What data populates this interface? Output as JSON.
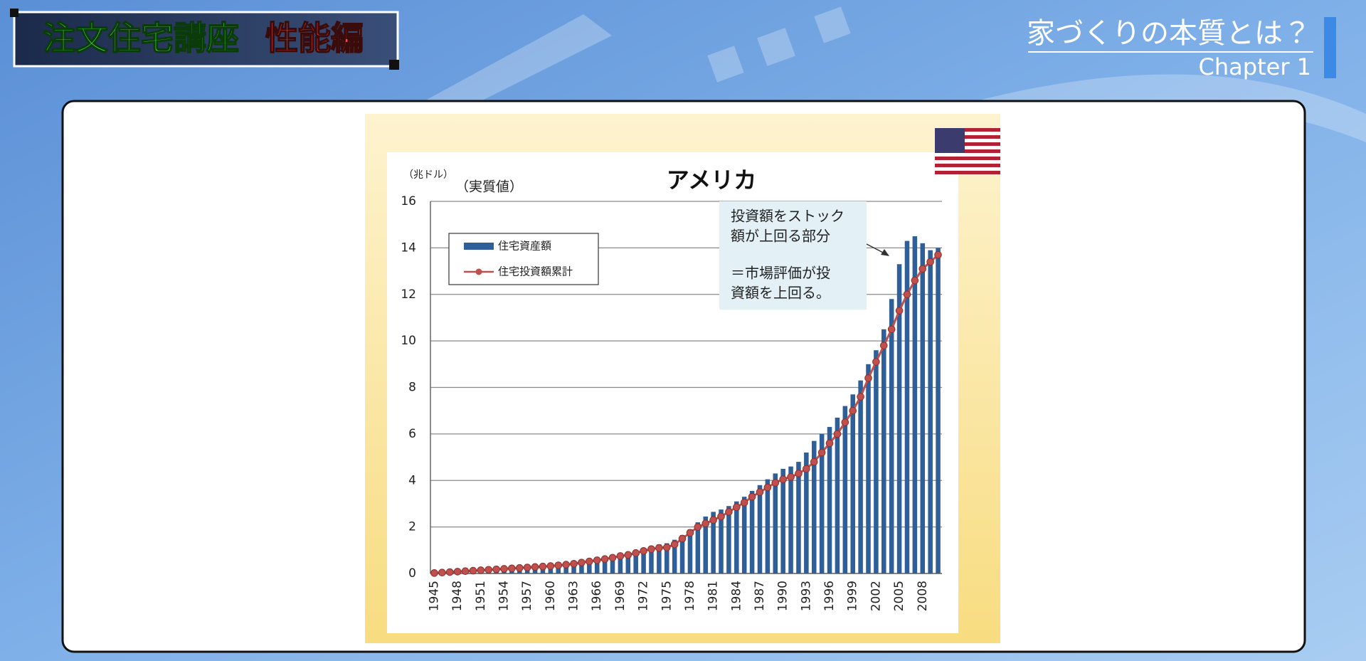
{
  "header": {
    "course": "注文住宅講座",
    "edition": "性能編"
  },
  "chapter": {
    "title": "家づくりの本質とは？",
    "label": "Chapter 1"
  },
  "chart_data": {
    "type": "bar-line",
    "title": "アメリカ",
    "subtitle": "（実質値）",
    "y_label": "（兆ドル）",
    "annotation": [
      "投資額をストック",
      "額が上回る部分",
      "＝市場評価が投",
      "資額を上回る。"
    ],
    "categories": [
      "1945",
      null,
      null,
      "1948",
      null,
      null,
      "1951",
      null,
      null,
      "1954",
      null,
      null,
      "1957",
      null,
      null,
      "1960",
      null,
      null,
      "1963",
      null,
      null,
      "1966",
      null,
      null,
      "1969",
      null,
      null,
      "1972",
      null,
      null,
      "1975",
      null,
      null,
      "1978",
      null,
      null,
      "1981",
      null,
      null,
      "1984",
      null,
      null,
      "1987",
      null,
      null,
      "1990",
      null,
      null,
      "1993",
      null,
      null,
      "1996",
      null,
      null,
      "1999",
      null,
      null,
      "2002",
      null,
      null,
      "2005",
      null,
      null,
      "2008",
      null,
      null
    ],
    "series": [
      {
        "name": "住宅資産額",
        "color": "#2f5f98",
        "kind": "bar",
        "values": [
          0.05,
          0.07,
          0.09,
          0.11,
          0.13,
          0.15,
          0.17,
          0.19,
          0.21,
          0.23,
          0.25,
          0.27,
          0.29,
          0.31,
          0.33,
          0.35,
          0.38,
          0.41,
          0.45,
          0.5,
          0.55,
          0.6,
          0.65,
          0.72,
          0.8,
          0.86,
          0.95,
          1.05,
          1.15,
          1.25,
          1.3,
          1.45,
          1.65,
          1.9,
          2.2,
          2.45,
          2.65,
          2.75,
          2.9,
          3.1,
          3.3,
          3.55,
          3.8,
          4.05,
          4.3,
          4.5,
          4.6,
          4.8,
          5.2,
          5.7,
          6.0,
          6.3,
          6.7,
          7.2,
          7.7,
          8.3,
          9.0,
          9.6,
          10.5,
          11.8,
          13.3,
          14.3,
          14.5,
          14.2,
          13.9,
          14.0
        ]
      },
      {
        "name": "住宅投資額累計",
        "color": "#c0504d",
        "kind": "line",
        "values": [
          0.02,
          0.04,
          0.06,
          0.08,
          0.1,
          0.12,
          0.14,
          0.16,
          0.18,
          0.2,
          0.22,
          0.24,
          0.26,
          0.28,
          0.3,
          0.32,
          0.35,
          0.38,
          0.42,
          0.47,
          0.52,
          0.57,
          0.62,
          0.68,
          0.75,
          0.8,
          0.88,
          0.97,
          1.05,
          1.1,
          1.12,
          1.25,
          1.5,
          1.75,
          2.0,
          2.15,
          2.3,
          2.45,
          2.65,
          2.85,
          3.05,
          3.3,
          3.5,
          3.7,
          3.9,
          4.05,
          4.15,
          4.3,
          4.5,
          4.8,
          5.2,
          5.6,
          6.0,
          6.5,
          7.0,
          7.6,
          8.4,
          9.1,
          9.8,
          10.5,
          11.3,
          12.0,
          12.6,
          13.1,
          13.4,
          13.7
        ]
      }
    ],
    "ylim": [
      0,
      16
    ],
    "yticks": [
      0,
      2,
      4,
      6,
      8,
      10,
      12,
      14,
      16
    ],
    "grid": true
  }
}
